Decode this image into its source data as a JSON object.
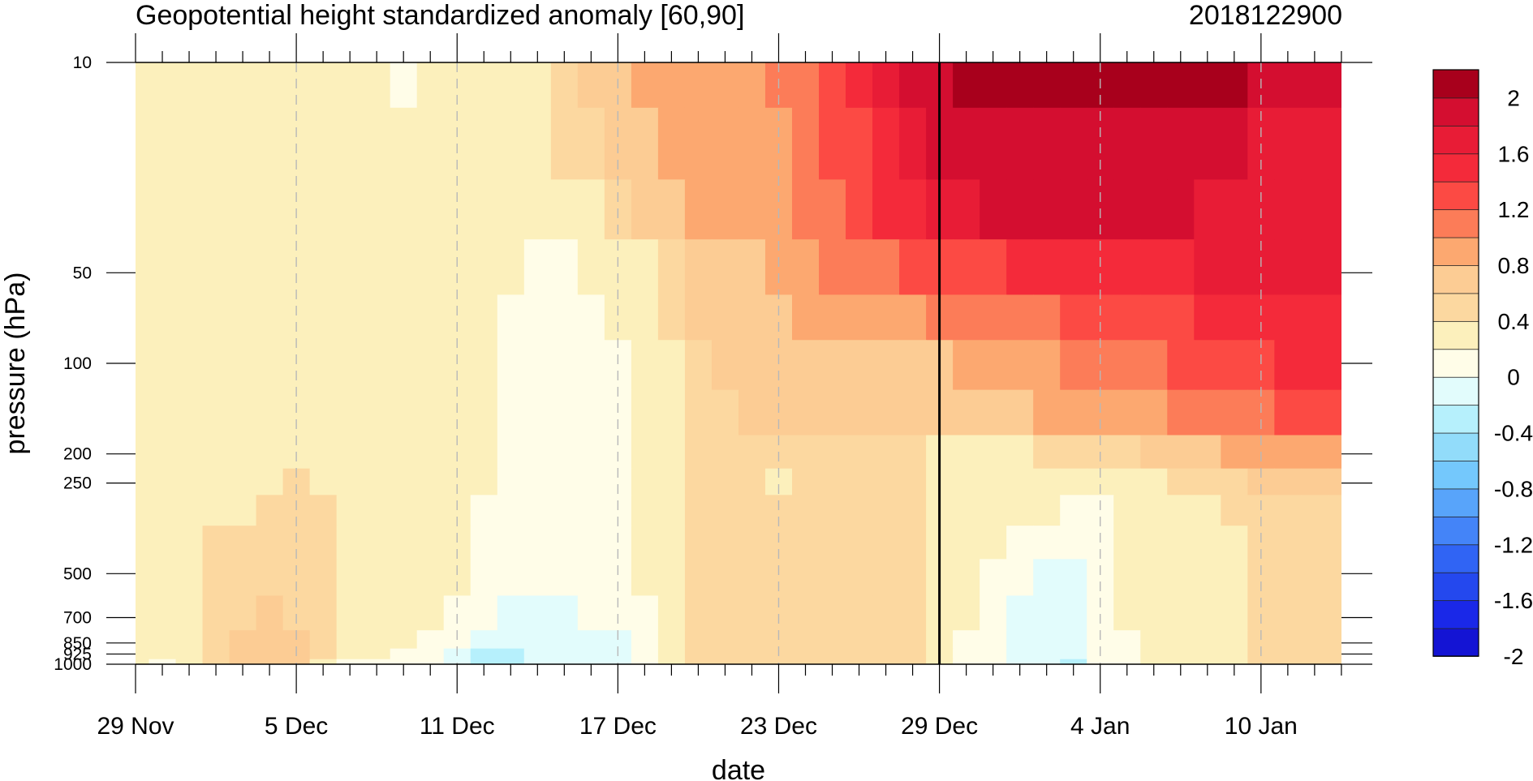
{
  "chart_data": {
    "type": "heatmap",
    "title": "Geopotential height standardized anomaly [60,90]",
    "subtitle": "2018122900",
    "xlabel": "date",
    "ylabel": "pressure (hPa)",
    "x_ticks": [
      "29 Nov",
      "5 Dec",
      "11 Dec",
      "17 Dec",
      "23 Dec",
      "29 Dec",
      "4 Jan",
      "10 Jan"
    ],
    "y_ticks": [
      "10",
      "50",
      "100",
      "200",
      "250",
      "500",
      "700",
      "850",
      "925",
      "1000"
    ],
    "y_scale": "log",
    "ylim": [
      1000,
      10
    ],
    "x_range_days": [
      0,
      45
    ],
    "highlight_date": "29 Dec",
    "colorbar": {
      "labels": [
        "2",
        "1.6",
        "1.2",
        "0.8",
        "0.4",
        "0",
        "-0.4",
        "-0.8",
        "-1.2",
        "-1.6",
        "-2"
      ],
      "levels": [
        -2.2,
        -2.0,
        -1.8,
        -1.6,
        -1.4,
        -1.2,
        -1.0,
        -0.8,
        -0.6,
        -0.4,
        -0.2,
        0,
        0.2,
        0.4,
        0.6,
        0.8,
        1.0,
        1.2,
        1.4,
        1.6,
        1.8,
        2.0,
        2.2
      ],
      "colors": [
        "#1414d4",
        "#1a28e8",
        "#2448ee",
        "#3064f4",
        "#4484f8",
        "#58a4fa",
        "#74c8fc",
        "#92dcfa",
        "#b6f0fc",
        "#e2fcfc",
        "#fffde8",
        "#fcf0bc",
        "#fcd8a0",
        "#fccc94",
        "#fca870",
        "#fc7c58",
        "#fc4a44",
        "#f42a3a",
        "#e81c36",
        "#d40e30",
        "#a8001c"
      ]
    },
    "axis_dates": [
      "29 Nov",
      "30 Nov",
      "1 Dec",
      "2 Dec",
      "3 Dec",
      "4 Dec",
      "5 Dec",
      "6 Dec",
      "7 Dec",
      "8 Dec",
      "9 Dec",
      "10 Dec",
      "11 Dec",
      "12 Dec",
      "13 Dec",
      "14 Dec",
      "15 Dec",
      "16 Dec",
      "17 Dec",
      "18 Dec",
      "19 Dec",
      "20 Dec",
      "21 Dec",
      "22 Dec",
      "23 Dec",
      "24 Dec",
      "25 Dec",
      "26 Dec",
      "27 Dec",
      "28 Dec",
      "29 Dec",
      "30 Dec",
      "31 Dec",
      "1 Jan",
      "2 Jan",
      "3 Jan",
      "4 Jan",
      "5 Jan",
      "6 Jan",
      "7 Jan",
      "8 Jan",
      "9 Jan",
      "10 Jan",
      "11 Jan",
      "12 Jan",
      "13 Jan"
    ],
    "axis_levels_hPa": [
      10,
      20,
      30,
      50,
      70,
      100,
      150,
      200,
      250,
      300,
      400,
      500,
      700,
      850,
      925,
      1000
    ],
    "note_grid": "rows follow axis_levels_hPa; columns follow axis_dates; values are standardized anomalies",
    "grid": [
      [
        0.1,
        0.1,
        0.1,
        0.1,
        0.1,
        0.1,
        0.1,
        0.1,
        0.1,
        0.1,
        -0.05,
        0.1,
        0.1,
        0.1,
        0.1,
        0.15,
        0.3,
        0.4,
        0.5,
        0.6,
        0.65,
        0.7,
        0.7,
        0.75,
        0.8,
        0.85,
        1.1,
        1.2,
        1.45,
        1.65,
        1.75,
        1.85,
        1.85,
        1.85,
        1.85,
        1.85,
        1.85,
        1.85,
        1.85,
        1.85,
        1.85,
        1.8,
        1.6,
        1.6,
        1.6,
        1.6
      ],
      [
        0.1,
        0.1,
        0.1,
        0.1,
        0.1,
        0.1,
        0.1,
        0.1,
        0.1,
        0.1,
        0.1,
        0.1,
        0.1,
        0.1,
        0.1,
        0.1,
        0.25,
        0.35,
        0.5,
        0.55,
        0.6,
        0.65,
        0.65,
        0.7,
        0.75,
        0.85,
        1.0,
        1.15,
        1.35,
        1.55,
        1.65,
        1.75,
        1.75,
        1.75,
        1.75,
        1.75,
        1.75,
        1.75,
        1.75,
        1.75,
        1.7,
        1.6,
        1.55,
        1.55,
        1.55,
        1.55
      ],
      [
        0.1,
        0.1,
        0.1,
        0.1,
        0.1,
        0.1,
        0.1,
        0.1,
        0.1,
        0.1,
        0.1,
        0.1,
        0.1,
        0.1,
        0.1,
        0.1,
        0.1,
        0.15,
        0.3,
        0.45,
        0.55,
        0.6,
        0.6,
        0.65,
        0.7,
        0.8,
        0.9,
        1.05,
        1.2,
        1.35,
        1.5,
        1.55,
        1.6,
        1.6,
        1.6,
        1.6,
        1.6,
        1.6,
        1.6,
        1.6,
        1.55,
        1.5,
        1.45,
        1.45,
        1.45,
        1.45
      ],
      [
        0.1,
        0.1,
        0.1,
        0.1,
        0.1,
        0.1,
        0.1,
        0.1,
        0.1,
        0.1,
        0.1,
        0.1,
        0.1,
        0.1,
        0.1,
        -0.1,
        -0.1,
        0.1,
        0.1,
        0.1,
        0.35,
        0.45,
        0.5,
        0.55,
        0.6,
        0.7,
        0.8,
        0.85,
        0.95,
        1.0,
        1.05,
        1.1,
        1.15,
        1.2,
        1.2,
        1.25,
        1.25,
        1.3,
        1.3,
        1.35,
        1.4,
        1.45,
        1.45,
        1.45,
        1.45,
        1.45
      ],
      [
        0.1,
        0.1,
        0.1,
        0.1,
        0.1,
        0.1,
        0.1,
        0.1,
        0.1,
        0.1,
        0.1,
        0.1,
        0.1,
        0.1,
        -0.1,
        -0.1,
        -0.1,
        -0.1,
        0.1,
        0.1,
        0.3,
        0.45,
        0.5,
        0.55,
        0.55,
        0.6,
        0.65,
        0.65,
        0.7,
        0.75,
        0.8,
        0.85,
        0.85,
        0.9,
        0.95,
        1.0,
        1.05,
        1.1,
        1.1,
        1.15,
        1.2,
        1.25,
        1.3,
        1.3,
        1.3,
        1.3
      ],
      [
        0.1,
        0.1,
        0.1,
        0.1,
        0.1,
        0.1,
        0.1,
        0.1,
        0.1,
        0.1,
        0.1,
        0.1,
        0.1,
        0.1,
        -0.1,
        -0.1,
        -0.1,
        -0.1,
        -0.1,
        0.1,
        0.15,
        0.35,
        0.45,
        0.5,
        0.5,
        0.5,
        0.55,
        0.55,
        0.55,
        0.55,
        0.55,
        0.6,
        0.65,
        0.7,
        0.75,
        0.8,
        0.85,
        0.9,
        0.95,
        1.0,
        1.05,
        1.1,
        1.15,
        1.2,
        1.2,
        1.2
      ],
      [
        0.1,
        0.1,
        0.1,
        0.1,
        0.1,
        0.1,
        0.1,
        0.1,
        0.1,
        0.1,
        0.1,
        0.1,
        0.1,
        0.1,
        -0.1,
        -0.1,
        -0.1,
        -0.1,
        -0.1,
        0.1,
        0.1,
        0.25,
        0.35,
        0.45,
        0.45,
        0.45,
        0.45,
        0.45,
        0.45,
        0.45,
        0.4,
        0.45,
        0.5,
        0.55,
        0.6,
        0.6,
        0.65,
        0.7,
        0.75,
        0.8,
        0.85,
        0.9,
        0.95,
        1.0,
        1.0,
        1.0
      ],
      [
        0.1,
        0.1,
        0.1,
        0.1,
        0.1,
        0.1,
        0.1,
        0.1,
        0.1,
        0.1,
        0.1,
        0.1,
        0.1,
        0.1,
        -0.1,
        -0.1,
        -0.1,
        -0.1,
        -0.1,
        0.1,
        0.1,
        0.2,
        0.3,
        0.35,
        0.35,
        0.35,
        0.3,
        0.3,
        0.3,
        0.3,
        0.1,
        0.1,
        0.1,
        0.1,
        0.2,
        0.25,
        0.3,
        0.35,
        0.4,
        0.45,
        0.55,
        0.6,
        0.65,
        0.7,
        0.7,
        0.7
      ],
      [
        0.1,
        0.1,
        0.1,
        0.1,
        0.1,
        0.15,
        0.25,
        0.1,
        0.1,
        0.1,
        0.1,
        0.1,
        0.1,
        0.1,
        -0.1,
        -0.1,
        -0.1,
        -0.1,
        -0.1,
        0.1,
        0.1,
        0.2,
        0.3,
        0.3,
        0.1,
        0.3,
        0.3,
        0.3,
        0.3,
        0.3,
        0.1,
        0.1,
        0.1,
        0.1,
        0.1,
        0.05,
        0.1,
        0.1,
        0.15,
        0.2,
        0.3,
        0.35,
        0.4,
        0.45,
        0.5,
        0.5
      ],
      [
        0.1,
        0.1,
        0.1,
        0.1,
        0.15,
        0.25,
        0.3,
        0.2,
        0.1,
        0.1,
        0.1,
        0.1,
        0.1,
        -0.1,
        -0.1,
        -0.1,
        -0.1,
        -0.1,
        -0.1,
        0.1,
        0.1,
        0.25,
        0.3,
        0.3,
        0.25,
        0.3,
        0.3,
        0.3,
        0.3,
        0.3,
        0.1,
        0.1,
        0.1,
        0.1,
        0.05,
        -0.1,
        -0.1,
        0.1,
        0.1,
        0.1,
        0.15,
        0.2,
        0.25,
        0.3,
        0.3,
        0.3
      ],
      [
        0.1,
        0.1,
        0.1,
        0.2,
        0.3,
        0.3,
        0.3,
        0.3,
        0.1,
        0.1,
        0.1,
        0.1,
        0.1,
        -0.1,
        -0.1,
        -0.1,
        -0.1,
        -0.1,
        -0.1,
        0.1,
        0.1,
        0.3,
        0.3,
        0.3,
        0.3,
        0.3,
        0.3,
        0.3,
        0.3,
        0.3,
        0.1,
        0.1,
        0.1,
        -0.1,
        -0.1,
        -0.1,
        -0.1,
        0.1,
        0.1,
        0.1,
        0.1,
        0.15,
        0.2,
        0.25,
        0.3,
        0.3
      ],
      [
        0.1,
        0.1,
        0.1,
        0.25,
        0.3,
        0.35,
        0.35,
        0.25,
        0.1,
        0.1,
        0.1,
        0.1,
        0.1,
        -0.1,
        -0.1,
        -0.1,
        -0.1,
        -0.1,
        -0.1,
        0.1,
        0.1,
        0.3,
        0.3,
        0.3,
        0.3,
        0.3,
        0.3,
        0.3,
        0.3,
        0.3,
        0.1,
        0.1,
        -0.1,
        -0.1,
        -0.3,
        -0.3,
        -0.1,
        0.1,
        0.1,
        0.1,
        0.1,
        0.1,
        0.25,
        0.3,
        0.3,
        0.3
      ],
      [
        0.1,
        0.1,
        0.1,
        0.3,
        0.3,
        0.45,
        0.35,
        0.3,
        0.1,
        0.1,
        0.1,
        0.1,
        -0.1,
        -0.1,
        -0.3,
        -0.3,
        -0.3,
        -0.1,
        -0.1,
        -0.1,
        0.1,
        0.3,
        0.3,
        0.3,
        0.3,
        0.3,
        0.3,
        0.3,
        0.3,
        0.3,
        0.1,
        0.1,
        -0.1,
        -0.3,
        -0.3,
        -0.3,
        -0.1,
        0.1,
        0.1,
        0.1,
        0.1,
        0.1,
        0.3,
        0.3,
        0.3,
        0.3
      ],
      [
        0.1,
        0.1,
        0.1,
        0.3,
        0.45,
        0.45,
        0.45,
        0.3,
        0.1,
        0.1,
        0.1,
        -0.1,
        -0.1,
        -0.3,
        -0.3,
        -0.3,
        -0.3,
        -0.3,
        -0.3,
        -0.1,
        0.1,
        0.3,
        0.3,
        0.3,
        0.3,
        0.3,
        0.3,
        0.3,
        0.3,
        0.3,
        0.1,
        -0.1,
        -0.1,
        -0.3,
        -0.3,
        -0.3,
        -0.1,
        -0.1,
        0.1,
        0.1,
        0.1,
        0.1,
        0.3,
        0.3,
        0.3,
        0.3
      ],
      [
        0.1,
        0.1,
        0.1,
        0.3,
        0.45,
        0.45,
        0.45,
        0.3,
        0.1,
        0.1,
        -0.1,
        -0.1,
        -0.3,
        -0.5,
        -0.5,
        -0.3,
        -0.3,
        -0.3,
        -0.3,
        -0.1,
        0.1,
        0.3,
        0.3,
        0.3,
        0.3,
        0.3,
        0.3,
        0.3,
        0.3,
        0.3,
        0.1,
        -0.1,
        -0.1,
        -0.3,
        -0.3,
        -0.3,
        -0.1,
        -0.1,
        0.1,
        0.1,
        0.1,
        0.1,
        0.3,
        0.3,
        0.3,
        0.3
      ],
      [
        0.1,
        -0.1,
        0.1,
        0.3,
        0.45,
        0.45,
        0.45,
        0.1,
        -0.1,
        -0.1,
        -0.1,
        -0.1,
        -0.3,
        -0.5,
        -0.5,
        -0.3,
        -0.3,
        -0.3,
        -0.3,
        -0.1,
        0.1,
        0.3,
        0.3,
        0.3,
        0.3,
        0.3,
        0.3,
        0.3,
        0.3,
        0.3,
        0.1,
        -0.1,
        -0.1,
        -0.3,
        -0.3,
        -0.5,
        -0.1,
        -0.1,
        0.1,
        0.1,
        0.1,
        0.1,
        0.3,
        0.3,
        0.3,
        0.3
      ]
    ]
  }
}
